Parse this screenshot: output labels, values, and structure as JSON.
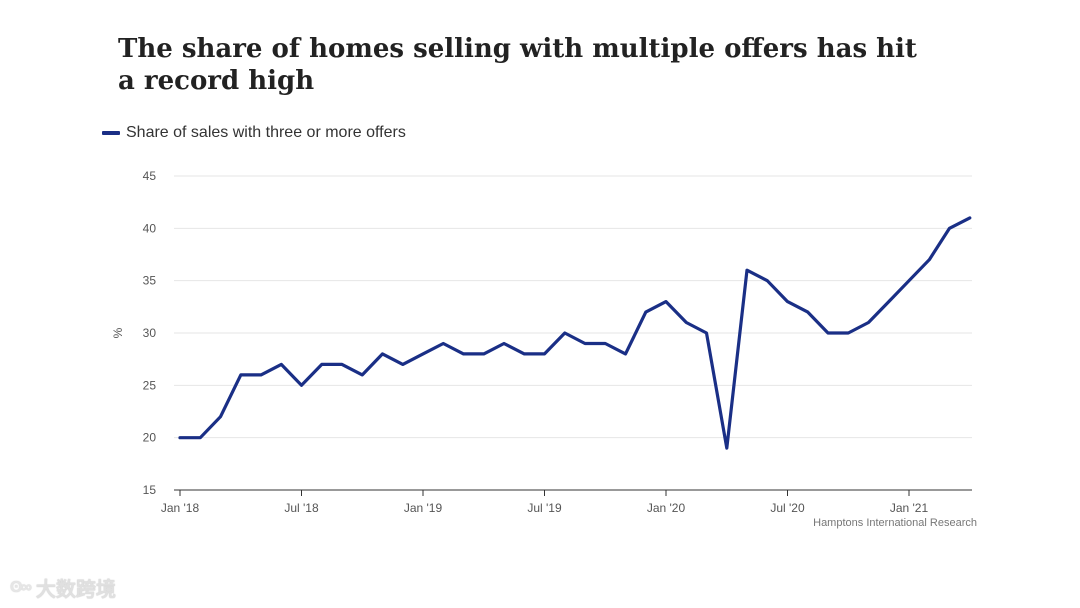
{
  "title": "The share of homes selling with multiple offers has hit a record high",
  "source": "Hamptons International Research",
  "watermark": {
    "icon": "logo-icon",
    "text": "大数跨境"
  },
  "colors": {
    "series": "#1a2f86",
    "grid": "#e6e6e6",
    "axis": "#333333"
  },
  "chart_data": {
    "type": "line",
    "title": "The share of homes selling with multiple offers has hit a record high",
    "ylabel": "%",
    "ylim": [
      15,
      45
    ],
    "yticks": [
      15,
      20,
      25,
      30,
      35,
      40,
      45
    ],
    "grid": true,
    "legend_position": "top-left",
    "x_tick_labels": [
      {
        "label": "Jan '18",
        "month_index": 0
      },
      {
        "label": "Jul '18",
        "month_index": 6
      },
      {
        "label": "Jan '19",
        "month_index": 12
      },
      {
        "label": "Jul '19",
        "month_index": 18
      },
      {
        "label": "Jan '20",
        "month_index": 24
      },
      {
        "label": "Jul '20",
        "month_index": 30
      },
      {
        "label": "Jan '21",
        "month_index": 36
      }
    ],
    "series": [
      {
        "name": "Share of sales with three or more offers",
        "color": "#1a2f86",
        "x": [
          "2018-01",
          "2018-02",
          "2018-03",
          "2018-04",
          "2018-05",
          "2018-06",
          "2018-07",
          "2018-08",
          "2018-09",
          "2018-10",
          "2018-11",
          "2018-12",
          "2019-01",
          "2019-02",
          "2019-03",
          "2019-04",
          "2019-05",
          "2019-06",
          "2019-07",
          "2019-08",
          "2019-09",
          "2019-10",
          "2019-11",
          "2019-12",
          "2020-01",
          "2020-02",
          "2020-03",
          "2020-04",
          "2020-05",
          "2020-06",
          "2020-07",
          "2020-08",
          "2020-09",
          "2020-10",
          "2020-11",
          "2020-12",
          "2021-01",
          "2021-02",
          "2021-03",
          "2021-04"
        ],
        "values": [
          20,
          20,
          22,
          26,
          26,
          27,
          25,
          27,
          27,
          26,
          28,
          27,
          28,
          29,
          28,
          28,
          29,
          28,
          28,
          30,
          29,
          29,
          28,
          32,
          33,
          31,
          30,
          19,
          36,
          35,
          33,
          32,
          30,
          30,
          31,
          33,
          35,
          37,
          40,
          41
        ]
      }
    ]
  }
}
